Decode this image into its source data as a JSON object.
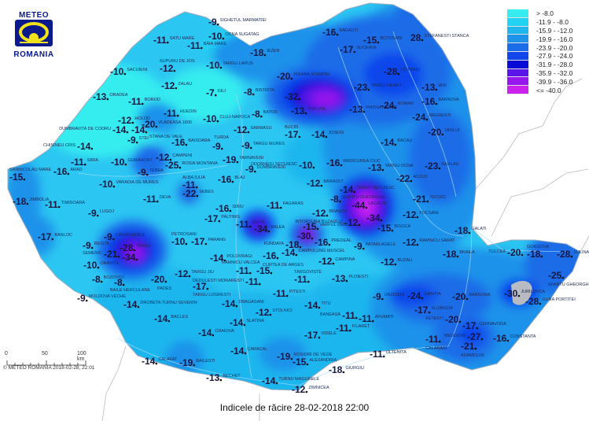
{
  "logo": {
    "top": "METEO",
    "bottom": "ROMANIA"
  },
  "title": "Indicele de răcire 28-02-2018 22:00",
  "copyright": "© METEO ROMANIA 2018-02-28, 22:01",
  "scale": {
    "labels": [
      "0",
      "50",
      "100 km"
    ]
  },
  "legend": [
    {
      "label": "> -8.0",
      "color": "#36ecef"
    },
    {
      "label": "-11.9 - -8.0",
      "color": "#22d2f2"
    },
    {
      "label": "-15.9 - -12.0",
      "color": "#1fb6ee"
    },
    {
      "label": "-19.9 - -16.0",
      "color": "#1f92ea"
    },
    {
      "label": "-23.9 - -20.0",
      "color": "#1a6ce8"
    },
    {
      "label": "-27.9 - -24.0",
      "color": "#1046ec"
    },
    {
      "label": "-31.9 - -28.0",
      "color": "#0a0ad6"
    },
    {
      "label": "-35.9 - -32.0",
      "color": "#5a16e8"
    },
    {
      "label": "-39.9 - -36.0",
      "color": "#9618ee"
    },
    {
      "label": "<= -40.0",
      "color": "#cc22ee"
    }
  ],
  "stations": [
    {
      "name": "SATU MARE",
      "value": "-11"
    },
    {
      "name": "SACUIENI",
      "value": "-10"
    },
    {
      "name": "SUPURU DE JOS",
      "value": "-12"
    },
    {
      "name": "ZALAU",
      "value": "-12"
    },
    {
      "name": "ORADEA",
      "value": "-13"
    },
    {
      "name": "BOROD",
      "value": "-11"
    },
    {
      "name": "HUEDIN",
      "value": "-11"
    },
    {
      "name": "HOLOD",
      "value": "-12"
    },
    {
      "name": "VLADEASA 1800",
      "value": "-20"
    },
    {
      "name": "DUMBRAVITA DE CODRU",
      "value": "-14"
    },
    {
      "name": "STANA DE VALE",
      "value": "-14"
    },
    {
      "name": "CLUJ-NAPOCA",
      "value": "-10"
    },
    {
      "name": "SIGHETUL MARMATIEI",
      "value": "-9"
    },
    {
      "name": "OCNA SUGATAG",
      "value": "-10"
    },
    {
      "name": "BAIA MARE",
      "value": "-11"
    },
    {
      "name": "IEZER",
      "value": "-18"
    },
    {
      "name": "TARGU LAPUS",
      "value": "-10"
    },
    {
      "name": "POIANA STAMPEI",
      "value": "-20"
    },
    {
      "name": "DEJ",
      "value": "-7"
    },
    {
      "name": "BISTRITA",
      "value": "-8"
    },
    {
      "name": "",
      "value": "-32"
    },
    {
      "name": "TOPLITA",
      "value": "-13"
    },
    {
      "name": "BATOS",
      "value": "-8"
    },
    {
      "name": "SARMASU",
      "value": "-12"
    },
    {
      "name": "BUCIN",
      "value": "-17"
    },
    {
      "name": "JOSENI",
      "value": "-14"
    },
    {
      "name": "RADAUTI",
      "value": "-16"
    },
    {
      "name": "BOTOSANI",
      "value": "-15"
    },
    {
      "name": "SUCEAVA",
      "value": "-17"
    },
    {
      "name": "COTNARI",
      "value": "-28"
    },
    {
      "name": "TARGU NEAMT",
      "value": "-23"
    },
    {
      "name": "PIATRA NEAMT",
      "value": "-13"
    },
    {
      "name": "ROMAN",
      "value": "-24"
    },
    {
      "name": "STEFANESTI STANCA",
      "value": "28"
    },
    {
      "name": "IASI",
      "value": "-13"
    },
    {
      "name": "BARNOVA",
      "value": "-16"
    },
    {
      "name": "NEGRESTI",
      "value": "-24"
    },
    {
      "name": "VASLUI",
      "value": "-20"
    },
    {
      "name": "CHISINEU CRIS",
      "value": "-14"
    },
    {
      "name": "STEI",
      "value": "-9"
    },
    {
      "name": "BAISOARA",
      "value": "-16"
    },
    {
      "name": "SIRIA",
      "value": "-11"
    },
    {
      "name": "GURAHONT",
      "value": "-10"
    },
    {
      "name": "CAMPENI",
      "value": "-12"
    },
    {
      "name": "ROSIA MONTANA",
      "value": "-25"
    },
    {
      "name": "SANNICOLAU MARE",
      "value": "-15"
    },
    {
      "name": "ARAD",
      "value": "-16"
    },
    {
      "name": "TEBEA",
      "value": "-9"
    },
    {
      "name": "VARADIA DE MURES",
      "value": "-10"
    },
    {
      "name": "JIMBOLIA",
      "value": "-18"
    },
    {
      "name": "TIMISOARA",
      "value": "-11"
    },
    {
      "name": "DEVA",
      "value": "-11"
    },
    {
      "name": "ALBA IULIA",
      "value": "-11"
    },
    {
      "name": "SEBES",
      "value": "-22"
    },
    {
      "name": "LUGOJ",
      "value": "-9"
    },
    {
      "name": "BANLOC",
      "value": "-17"
    },
    {
      "name": "CARANSEBES",
      "value": "-9"
    },
    {
      "name": "RESITA",
      "value": "-9"
    },
    {
      "name": "TARCU",
      "value": "-28"
    },
    {
      "name": "",
      "value": "-34"
    },
    {
      "name": "SEMENIC",
      "value": "-21"
    },
    {
      "name": "ORAVITA",
      "value": "-10"
    },
    {
      "name": "BOZOVICI",
      "value": "-8"
    },
    {
      "name": "BAILE HERCULANE",
      "value": "-8"
    },
    {
      "name": "PADES",
      "value": "-20"
    },
    {
      "name": "PETROSANI",
      "value": "-10"
    },
    {
      "name": "TARGU JIU",
      "value": "-12"
    },
    {
      "name": "PARANG",
      "value": "-17"
    },
    {
      "name": "TURDA",
      "value": "-9"
    },
    {
      "name": "TARGU MURES",
      "value": "-9"
    },
    {
      "name": "TARNAVENI",
      "value": "-19"
    },
    {
      "name": "DUMBRAVENI",
      "value": "-9"
    },
    {
      "name": "ODORHEIU SECUIESC",
      "value": "-10"
    },
    {
      "name": "MIERCUREA CIUC",
      "value": "-16"
    },
    {
      "name": "BLAJ",
      "value": "-16"
    },
    {
      "name": "BARAOLT",
      "value": "-12"
    },
    {
      "name": "TARGU SECUIESC",
      "value": "-14"
    },
    {
      "name": "SFANTU GHEORGHE",
      "value": "-8"
    },
    {
      "name": "SIBIU",
      "value": "-16"
    },
    {
      "name": "FAGARAS",
      "value": "-11"
    },
    {
      "name": "PALTINIS",
      "value": "-17"
    },
    {
      "name": "BOITA",
      "value": "-11"
    },
    {
      "name": "BRASOV",
      "value": "-12"
    },
    {
      "name": "BALEA",
      "value": "-34"
    },
    {
      "name": "VARFUL OMU",
      "value": "-15"
    },
    {
      "name": "",
      "value": "-30"
    },
    {
      "name": "PREDEAL",
      "value": "-16"
    },
    {
      "name": "FUNDATA",
      "value": "-18"
    },
    {
      "name": "CAMPULUNG MUSCEL",
      "value": "-14"
    },
    {
      "name": "CURTEA DE ARGES",
      "value": "-16"
    },
    {
      "name": "CAMPINA",
      "value": "-12"
    },
    {
      "name": "POLOVRAGI",
      "value": "-14"
    },
    {
      "name": "RAMNICU VALCEA",
      "value": "-11"
    },
    {
      "name": "",
      "value": "-15"
    },
    {
      "name": "TARGU LOGRESTI",
      "value": "-17"
    },
    {
      "name": "BACAU",
      "value": "-14"
    },
    {
      "name": "TARGU OCNA",
      "value": "-13"
    },
    {
      "name": "BARLAD",
      "value": "-23"
    },
    {
      "name": "ADJUD",
      "value": "-22"
    },
    {
      "name": "TECUCI",
      "value": "-21"
    },
    {
      "name": "LACAUTI",
      "value": "-44"
    },
    {
      "name": "FOCSANI",
      "value": "-12"
    },
    {
      "name": "",
      "value": "-34"
    },
    {
      "name": "INTORSURA BUZAULUI",
      "value": "-12"
    },
    {
      "name": "BISOCA",
      "value": "-15"
    },
    {
      "name": "GALATI",
      "value": "-18"
    },
    {
      "name": "RAMNICU SARAT",
      "value": "-12"
    },
    {
      "name": "PATARLAGELE",
      "value": "-9"
    },
    {
      "name": "BRAILA",
      "value": "-18"
    },
    {
      "name": "BUZAU",
      "value": "-12"
    },
    {
      "name": "TULCEA",
      "value": "-20"
    },
    {
      "name": "GORGOVA",
      "value": "-18"
    },
    {
      "name": "SULINA",
      "value": "-28"
    },
    {
      "name": "SFANTU GHEORGHE",
      "value": "-25"
    },
    {
      "name": "MOLDOVA VECHE",
      "value": "-9"
    },
    {
      "name": "DROBETA TURNU SEVERIN",
      "value": "-14"
    },
    {
      "name": "BACLES",
      "value": "-14"
    },
    {
      "name": "DRAGASANI",
      "value": "-14"
    },
    {
      "name": "DEDULESTI MORARESTI",
      "value": "-11"
    },
    {
      "name": "STOLNICI",
      "value": "-12"
    },
    {
      "name": "SLATINA",
      "value": "-14"
    },
    {
      "name": "CRAIOVA",
      "value": "-14"
    },
    {
      "name": "CALAFAT",
      "value": "-14"
    },
    {
      "name": "BAILESTI",
      "value": "-19"
    },
    {
      "name": "CARACAL",
      "value": "-14"
    },
    {
      "name": "BECHET",
      "value": "-13"
    },
    {
      "name": "TURNU MAGURELE",
      "value": "-14"
    },
    {
      "name": "PITESTI",
      "value": "-11"
    },
    {
      "name": "TARGOVISTE",
      "value": "-11"
    },
    {
      "name": "PLOIESTI",
      "value": "-13"
    },
    {
      "name": "URZICENI",
      "value": "-9"
    },
    {
      "name": "GRIVITA",
      "value": "-24"
    },
    {
      "name": "BARSONA",
      "value": "-20"
    },
    {
      "name": "TITU",
      "value": "-14"
    },
    {
      "name": "BANEASA",
      "value": "-11"
    },
    {
      "name": "AFUMATI",
      "value": "-11"
    },
    {
      "name": "SLOBOZIA",
      "value": "-17"
    },
    {
      "name": "FILARET",
      "value": "-11"
    },
    {
      "name": "FETESTI",
      "value": "-20"
    },
    {
      "name": "CERNAVODA",
      "value": "-17"
    },
    {
      "name": "VIDELE",
      "value": "-17"
    },
    {
      "name": "MEDGIDIA",
      "value": "-27"
    },
    {
      "name": "CONSTANTA",
      "value": "-16"
    },
    {
      "name": "CALARASI",
      "value": "-11"
    },
    {
      "name": "ROSIORI DE VEDE",
      "value": "-19"
    },
    {
      "name": "OLTENITA",
      "value": "-11"
    },
    {
      "name": "ADAMCLISI",
      "value": "-21"
    },
    {
      "name": "ALEXANDRIA",
      "value": "-15"
    },
    {
      "name": "GIURGIU",
      "value": "-18"
    },
    {
      "name": "ZIMNICEA",
      "value": "-12"
    },
    {
      "name": "JURILOVCA",
      "value": "-30"
    },
    {
      "name": "GURA PORTITEI",
      "value": "-28"
    }
  ]
}
